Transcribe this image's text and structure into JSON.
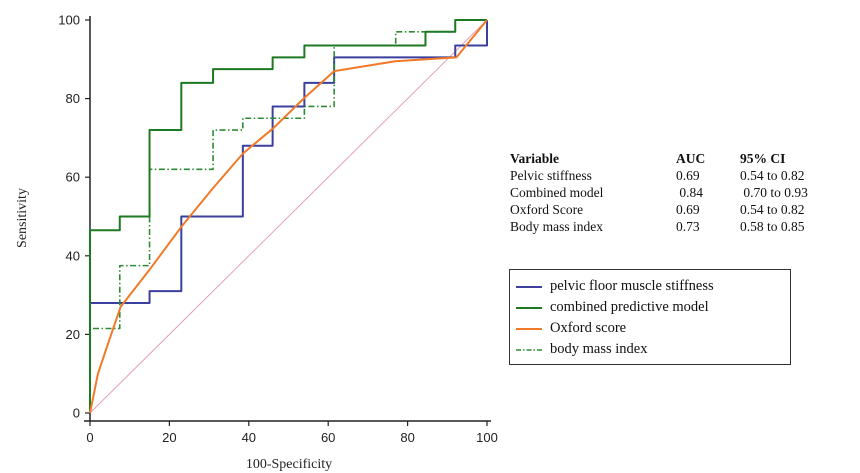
{
  "chart_data": {
    "type": "line",
    "title": "",
    "xlabel": "100-Specificity",
    "ylabel": "Sensitivity",
    "xlim": [
      0,
      100
    ],
    "ylim": [
      0,
      100
    ],
    "xticks": [
      0,
      20,
      40,
      60,
      80,
      100
    ],
    "yticks": [
      0,
      20,
      40,
      60,
      80,
      100
    ],
    "grid": false,
    "legend_position": "right",
    "reference_line": {
      "points": [
        [
          0,
          0
        ],
        [
          100,
          100
        ]
      ],
      "color": "#e8a0b0"
    },
    "series": [
      {
        "name": "pelvic floor muscle stiffness",
        "color": "#3b3f9e",
        "style": "solid",
        "points": [
          [
            0,
            0
          ],
          [
            0,
            28
          ],
          [
            15,
            28
          ],
          [
            15,
            31
          ],
          [
            23,
            31
          ],
          [
            23,
            50
          ],
          [
            38.5,
            50
          ],
          [
            38.5,
            68
          ],
          [
            46,
            68
          ],
          [
            46,
            78
          ],
          [
            54,
            78
          ],
          [
            54,
            84
          ],
          [
            61.5,
            84
          ],
          [
            61.5,
            90.5
          ],
          [
            92,
            90.5
          ],
          [
            92,
            93.5
          ],
          [
            100,
            93.5
          ],
          [
            100,
            100
          ]
        ]
      },
      {
        "name": "combined predictive model",
        "color": "#1e7a22",
        "style": "solid",
        "points": [
          [
            0,
            0
          ],
          [
            0,
            46.5
          ],
          [
            7.5,
            46.5
          ],
          [
            7.5,
            50
          ],
          [
            15,
            50
          ],
          [
            15,
            72
          ],
          [
            23,
            72
          ],
          [
            23,
            84
          ],
          [
            31,
            84
          ],
          [
            31,
            87.5
          ],
          [
            46,
            87.5
          ],
          [
            46,
            90.5
          ],
          [
            54,
            90.5
          ],
          [
            54,
            93.5
          ],
          [
            84.5,
            93.5
          ],
          [
            84.5,
            97
          ],
          [
            92,
            97
          ],
          [
            92,
            100
          ],
          [
            100,
            100
          ]
        ]
      },
      {
        "name": "Oxford score",
        "color": "#f07a28",
        "style": "solid",
        "points": [
          [
            0,
            0
          ],
          [
            2,
            10
          ],
          [
            5,
            19
          ],
          [
            7.7,
            27
          ],
          [
            15.4,
            37
          ],
          [
            23.1,
            47.5
          ],
          [
            30.8,
            57
          ],
          [
            38.5,
            66
          ],
          [
            46.2,
            72.5
          ],
          [
            53.8,
            80
          ],
          [
            61.5,
            87
          ],
          [
            76.9,
            89.5
          ],
          [
            92.3,
            90.5
          ],
          [
            100,
            100
          ]
        ]
      },
      {
        "name": "body mass index",
        "color": "#2f8a34",
        "style": "dashdot",
        "points": [
          [
            0,
            0
          ],
          [
            0,
            21.5
          ],
          [
            7.5,
            21.5
          ],
          [
            7.5,
            37.5
          ],
          [
            15,
            37.5
          ],
          [
            15,
            62
          ],
          [
            31,
            62
          ],
          [
            31,
            72
          ],
          [
            38.5,
            72
          ],
          [
            38.5,
            75
          ],
          [
            54,
            75
          ],
          [
            54,
            78
          ],
          [
            61.5,
            78
          ],
          [
            61.5,
            93.5
          ],
          [
            77,
            93.5
          ],
          [
            77,
            97
          ],
          [
            92,
            97
          ],
          [
            92,
            100
          ],
          [
            100,
            100
          ]
        ]
      }
    ],
    "auc_table": {
      "headers": [
        "Variable",
        "AUC",
        "95% CI"
      ],
      "rows": [
        [
          "Pelvic stiffness",
          "0.69",
          "0.54 to 0.82"
        ],
        [
          "Combined model",
          " 0.84",
          " 0.70 to 0.93"
        ],
        [
          "Oxford Score",
          "0.69",
          "0.54 to 0.82"
        ],
        [
          "Body mass index",
          "0.73",
          "0.58 to 0.85"
        ]
      ]
    }
  }
}
